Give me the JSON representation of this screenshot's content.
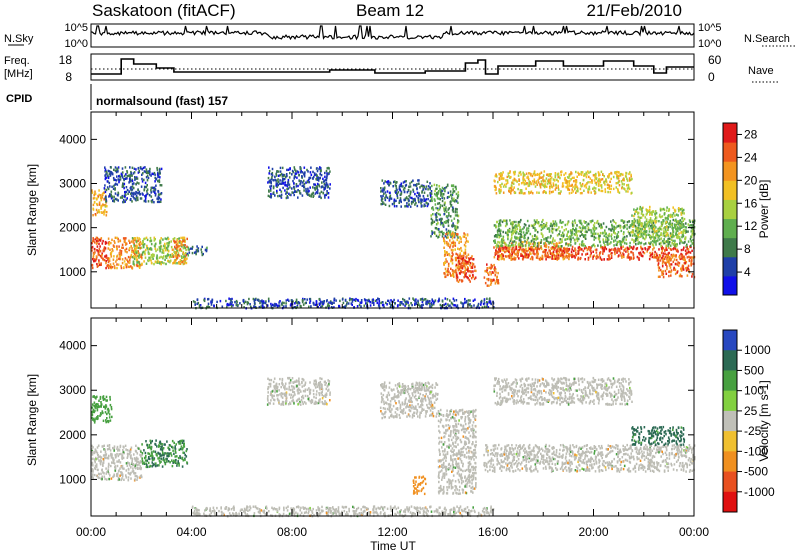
{
  "header": {
    "station": "Saskatoon (fitACF)",
    "beam": "Beam 12",
    "date": "21/Feb/2010"
  },
  "strips": {
    "nsky_label": "N.Sky",
    "nsky_ticks": [
      "10^5",
      "10^0"
    ],
    "nsearch_label": "N.Search",
    "nsearch_ticks": [
      "10^5",
      "10^0"
    ],
    "freq_label_1": "Freq.",
    "freq_label_2": "[MHz]",
    "freq_ticks": [
      "18",
      "8"
    ],
    "nave_label": "Nave",
    "nave_ticks": [
      "60",
      "0"
    ],
    "cpid_label": "CPID",
    "cpid_value": "normalsound (fast) 157"
  },
  "colors": {
    "power_scale": [
      "#1010e8",
      "#1f3fa8",
      "#3f7a4a",
      "#5fae4e",
      "#a8d040",
      "#f2c023",
      "#f39420",
      "#ee5a1e",
      "#e01a1a"
    ],
    "velocity_scale": [
      "#2848c0",
      "#2c6a54",
      "#47a040",
      "#82d040",
      "#c0c0b8",
      "#f0c030",
      "#f09020",
      "#e85020",
      "#e01010"
    ],
    "ground_scatter": "#bdbdb5"
  },
  "chart_data": [
    {
      "type": "heatmap",
      "title": "Power",
      "xlabel": "Time UT",
      "ylabel": "Slant Range [km]",
      "x_ticks": [
        "00:00",
        "04:00",
        "08:00",
        "12:00",
        "16:00",
        "20:00",
        "00:00"
      ],
      "xlim_hours": [
        0,
        24
      ],
      "y_ticks": [
        "1000",
        "2000",
        "3000",
        "4000"
      ],
      "ylim_km": [
        180,
        4620
      ],
      "colorbar": {
        "label": "Power [dB]",
        "ticks": [
          "4",
          "8",
          "12",
          "16",
          "20",
          "24",
          "28"
        ],
        "range": [
          0,
          30
        ]
      },
      "regions": [
        {
          "t0": 0.0,
          "t1": 0.6,
          "r0": 2300,
          "r1": 2900,
          "v": 20
        },
        {
          "t0": 0.0,
          "t1": 0.7,
          "r0": 1100,
          "r1": 1800,
          "v": 26
        },
        {
          "t0": 0.6,
          "t1": 2.0,
          "r0": 1100,
          "r1": 1800,
          "v": 22
        },
        {
          "t0": 1.6,
          "t1": 3.8,
          "r0": 1200,
          "r1": 1800,
          "v": 14
        },
        {
          "t0": 3.2,
          "t1": 3.8,
          "r0": 1200,
          "r1": 1800,
          "v": 22
        },
        {
          "t0": 3.8,
          "t1": 4.6,
          "r0": 1400,
          "r1": 1600,
          "v": 8
        },
        {
          "t0": 0.5,
          "t1": 2.8,
          "r0": 2600,
          "r1": 3400,
          "v": 6
        },
        {
          "t0": 7.0,
          "t1": 9.5,
          "r0": 2700,
          "r1": 3400,
          "v": 6
        },
        {
          "t0": 11.5,
          "t1": 13.5,
          "r0": 2500,
          "r1": 3100,
          "v": 6
        },
        {
          "t0": 13.5,
          "t1": 14.6,
          "r0": 1800,
          "r1": 3000,
          "v": 10
        },
        {
          "t0": 14.0,
          "t1": 15.0,
          "r0": 900,
          "r1": 1900,
          "v": 22
        },
        {
          "t0": 14.5,
          "t1": 15.3,
          "r0": 800,
          "r1": 1400,
          "v": 26
        },
        {
          "t0": 15.6,
          "t1": 16.2,
          "r0": 700,
          "r1": 1200,
          "v": 24
        },
        {
          "t0": 16.2,
          "t1": 19.0,
          "r0": 1300,
          "r1": 1700,
          "v": 22
        },
        {
          "t0": 16.0,
          "t1": 24.0,
          "r0": 1300,
          "r1": 1600,
          "v": 26
        },
        {
          "t0": 16.0,
          "t1": 24.0,
          "r0": 1600,
          "r1": 2200,
          "v": 12
        },
        {
          "t0": 16.0,
          "t1": 21.5,
          "r0": 2800,
          "r1": 3300,
          "v": 18
        },
        {
          "t0": 21.5,
          "t1": 23.6,
          "r0": 1800,
          "r1": 2500,
          "v": 14
        },
        {
          "t0": 22.5,
          "t1": 24.0,
          "r0": 900,
          "r1": 1400,
          "v": 24
        },
        {
          "t0": 4.0,
          "t1": 16.0,
          "r0": 200,
          "r1": 420,
          "v": 5
        }
      ]
    },
    {
      "type": "heatmap",
      "title": "Velocity",
      "xlabel": "Time UT",
      "ylabel": "Slant Range [km]",
      "x_ticks": [
        "00:00",
        "04:00",
        "08:00",
        "12:00",
        "16:00",
        "20:00",
        "00:00"
      ],
      "xlim_hours": [
        0,
        24
      ],
      "y_ticks": [
        "1000",
        "2000",
        "3000",
        "4000"
      ],
      "ylim_km": [
        180,
        4620
      ],
      "colorbar": {
        "label": "Velocity [m s-1]",
        "ticks": [
          "1000",
          "500",
          "100",
          "25",
          "-25",
          "-100",
          "-500",
          "-1000"
        ]
      },
      "regions": [
        {
          "t0": 0.0,
          "t1": 0.8,
          "r0": 2300,
          "r1": 2900,
          "v": 200
        },
        {
          "t0": 0.0,
          "t1": 2.0,
          "r0": 1000,
          "r1": 1800,
          "v": 0
        },
        {
          "t0": 2.0,
          "t1": 3.8,
          "r0": 1300,
          "r1": 1900,
          "v": 300
        },
        {
          "t0": 7.0,
          "t1": 9.5,
          "r0": 2700,
          "r1": 3300,
          "v": 0
        },
        {
          "t0": 11.5,
          "t1": 13.8,
          "r0": 2400,
          "r1": 3200,
          "v": 0
        },
        {
          "t0": 13.8,
          "t1": 15.3,
          "r0": 700,
          "r1": 2600,
          "v": 0
        },
        {
          "t0": 12.8,
          "t1": 13.3,
          "r0": 700,
          "r1": 1100,
          "v": -200
        },
        {
          "t0": 15.6,
          "t1": 24.0,
          "r0": 1200,
          "r1": 1800,
          "v": 0
        },
        {
          "t0": 16.0,
          "t1": 21.5,
          "r0": 2700,
          "r1": 3300,
          "v": 0
        },
        {
          "t0": 21.5,
          "t1": 23.6,
          "r0": 1800,
          "r1": 2200,
          "v": 400
        },
        {
          "t0": 4.0,
          "t1": 16.0,
          "r0": 200,
          "r1": 420,
          "v": -60
        }
      ]
    }
  ]
}
